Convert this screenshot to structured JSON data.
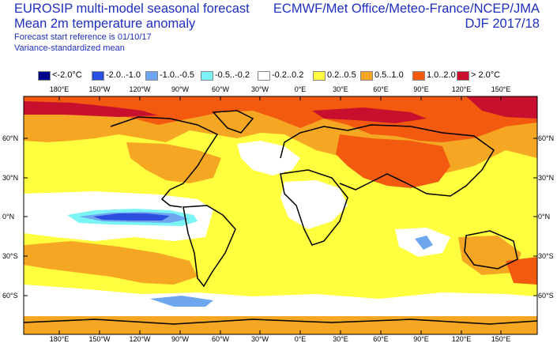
{
  "header": {
    "title_line1": "EUROSIP multi-model seasonal forecast",
    "title_line2": "Mean 2m temperature anomaly",
    "subtitle_line1": "Forecast start reference is 01/10/17",
    "subtitle_line2": "Variance-standardized mean",
    "centres": "ECMWF/Met Office/Meteo-France/NCEP/JMA",
    "period": "DJF 2017/18"
  },
  "legend": [
    {
      "label": "<-2.0°C",
      "color": "#00008f"
    },
    {
      "label": "-2.0..-1.0",
      "color": "#2d4fe0"
    },
    {
      "label": "-1.0..-0.5",
      "color": "#6fa6f0"
    },
    {
      "label": "-0.5..-0.2",
      "color": "#7af4f4"
    },
    {
      "label": "-0.2..0.2",
      "color": "#ffffff"
    },
    {
      "label": "0.2..0.5",
      "color": "#ffff40"
    },
    {
      "label": "0.5..1.0",
      "color": "#f5a623"
    },
    {
      "label": "1.0..2.0",
      "color": "#f25a10"
    },
    {
      "label": "> 2.0°C",
      "color": "#c8102e"
    }
  ],
  "axes": {
    "lon_labels": [
      "180°E",
      "150°W",
      "120°W",
      "90°W",
      "60°W",
      "30°W",
      "0°E",
      "30°E",
      "60°E",
      "90°E",
      "120°E",
      "150°E"
    ],
    "lat_labels": [
      "60°N",
      "30°N",
      "0°N",
      "30°S",
      "60°S"
    ]
  }
}
